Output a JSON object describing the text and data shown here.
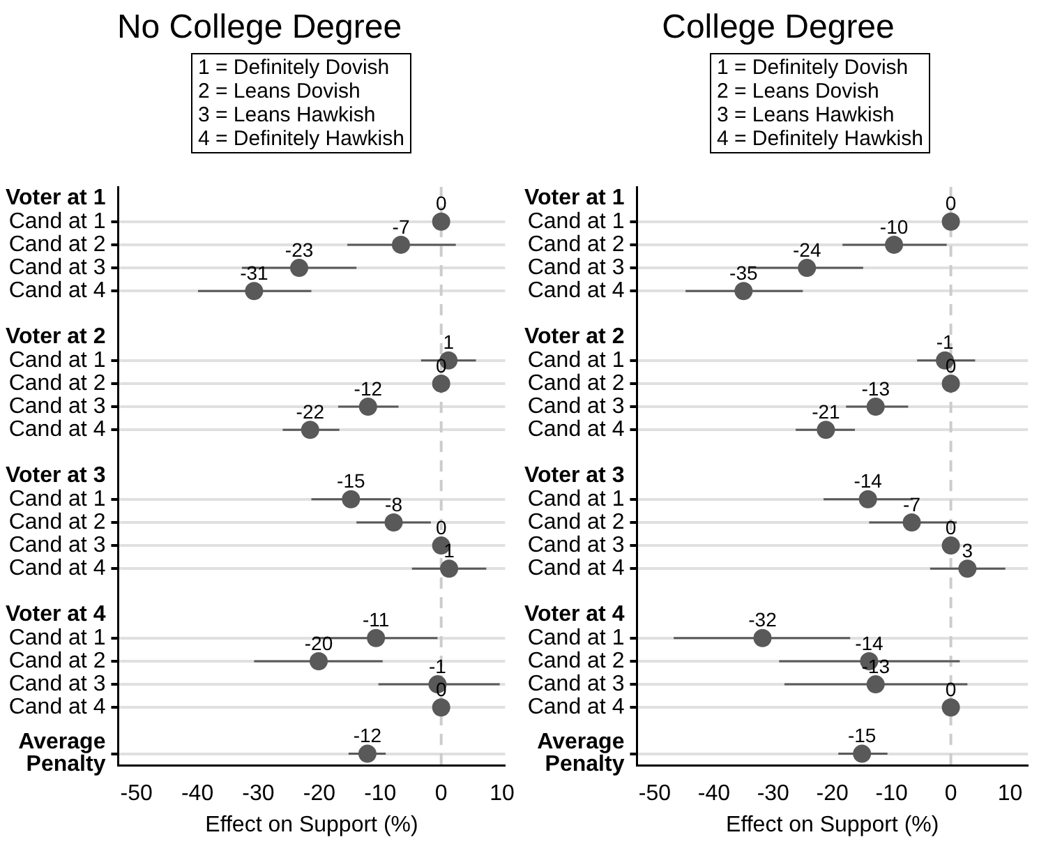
{
  "chart_data": [
    {
      "type": "scatter",
      "orientation": "horizontal",
      "title": "No College Degree",
      "annotations": [
        "1 = Definitely Dovish",
        "2 = Leans Dovish",
        "3 = Leans Hawkish",
        "4 = Definitely Hawkish"
      ],
      "xlabel": "Effect on Support (%)",
      "color": "#595959",
      "marker": "circle",
      "grid": "y",
      "xlim": [
        -53,
        10.5
      ],
      "xticks": [
        -50,
        -40,
        -30,
        -20,
        -10,
        0,
        10
      ],
      "ref_lines": [
        {
          "axis": "x",
          "value": 0,
          "color": "#cccccc",
          "line_style": "dashed"
        }
      ],
      "categories": [
        "Voter at 1",
        "Cand at 1",
        "Cand at 2",
        "Cand at 3",
        "Cand at 4",
        null,
        "Voter at 2",
        "Cand at 1",
        "Cand at 2",
        "Cand at 3",
        "Cand at 4",
        null,
        "Voter at 3",
        "Cand at 1",
        "Cand at 2",
        "Cand at 3",
        "Cand at 4",
        null,
        "Voter at 4",
        "Cand at 1",
        "Cand at 2",
        "Cand at 3",
        "Cand at 4",
        null,
        "Average Penalty"
      ],
      "values": [
        null,
        0,
        -6.6,
        -23.3,
        -30.7,
        null,
        null,
        1.2,
        0,
        -12.0,
        -21.5,
        null,
        null,
        -14.8,
        -7.8,
        0,
        1.3,
        null,
        null,
        -10.7,
        -20.1,
        -0.6,
        0,
        null,
        -12.1
      ],
      "errors": [
        null,
        null,
        [
          -15.4,
          2.4
        ],
        [
          -32.7,
          -13.9
        ],
        [
          -39.9,
          -21.3
        ],
        null,
        null,
        [
          -3.3,
          5.7
        ],
        null,
        [
          -16.9,
          -7.0
        ],
        [
          -26.0,
          -16.7
        ],
        null,
        null,
        [
          -21.3,
          -8.3
        ],
        [
          -13.9,
          -1.7
        ],
        null,
        [
          -4.8,
          7.4
        ],
        null,
        null,
        [
          -20.9,
          -0.6
        ],
        [
          -30.7,
          -9.6
        ],
        [
          -10.3,
          9.6
        ],
        null,
        null,
        [
          -15.2,
          -9.1
        ]
      ],
      "value_labels": [
        null,
        "0",
        "-7",
        "-23",
        "-31",
        null,
        null,
        "1",
        "0",
        "-12",
        "-22",
        null,
        null,
        "-15",
        "-8",
        "0",
        "1",
        null,
        null,
        "-11",
        "-20",
        "-1",
        "0",
        null,
        "-12"
      ]
    },
    {
      "type": "scatter",
      "orientation": "horizontal",
      "title": "College Degree",
      "annotations": [
        "1 = Definitely Dovish",
        "2 = Leans Dovish",
        "3 = Leans Hawkish",
        "4 = Definitely Hawkish"
      ],
      "xlabel": "Effect on Support (%)",
      "color": "#595959",
      "marker": "circle",
      "grid": "y",
      "xlim": [
        -53,
        13
      ],
      "xticks": [
        -50,
        -40,
        -30,
        -20,
        -10,
        0,
        10
      ],
      "ref_lines": [
        {
          "axis": "x",
          "value": 0,
          "color": "#cccccc",
          "line_style": "dashed"
        }
      ],
      "categories": [
        "Voter at 1",
        "Cand at 1",
        "Cand at 2",
        "Cand at 3",
        "Cand at 4",
        null,
        "Voter at 2",
        "Cand at 1",
        "Cand at 2",
        "Cand at 3",
        "Cand at 4",
        null,
        "Voter at 3",
        "Cand at 1",
        "Cand at 2",
        "Cand at 3",
        "Cand at 4",
        null,
        "Voter at 4",
        "Cand at 1",
        "Cand at 2",
        "Cand at 3",
        "Cand at 4",
        null,
        "Average Penalty"
      ],
      "values": [
        null,
        0,
        -9.6,
        -24.3,
        -35.0,
        null,
        null,
        -1.0,
        0,
        -12.7,
        -21.1,
        null,
        null,
        -14.0,
        -6.6,
        0,
        2.8,
        null,
        null,
        -31.8,
        -13.8,
        -12.7,
        0,
        null,
        -15.0
      ],
      "errors": [
        null,
        null,
        [
          -18.3,
          -0.7
        ],
        [
          -33.9,
          -14.8
        ],
        [
          -44.8,
          -25.0
        ],
        null,
        null,
        [
          -5.7,
          4.1
        ],
        null,
        [
          -17.7,
          -7.2
        ],
        [
          -26.2,
          -16.2
        ],
        null,
        null,
        [
          -21.5,
          -6.4
        ],
        [
          -13.8,
          1.0
        ],
        null,
        [
          -3.5,
          9.2
        ],
        null,
        null,
        [
          -46.8,
          -17.0
        ],
        [
          -29.0,
          1.5
        ],
        [
          -28.1,
          2.8
        ],
        null,
        null,
        [
          -19.0,
          -10.7
        ]
      ],
      "value_labels": [
        null,
        "0",
        "-10",
        "-24",
        "-35",
        null,
        null,
        "-1",
        "0",
        "-13",
        "-21",
        null,
        null,
        "-14",
        "-7",
        "0",
        "3",
        null,
        null,
        "-32",
        "-14",
        "-13",
        "0",
        null,
        "-15"
      ]
    }
  ]
}
